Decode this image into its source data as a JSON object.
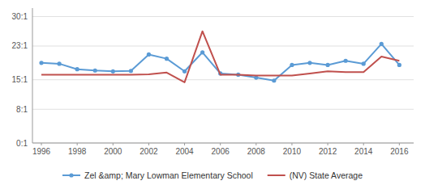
{
  "chart_data": {
    "type": "line",
    "x": [
      1996,
      1997,
      1998,
      1999,
      2000,
      2001,
      2002,
      2003,
      2004,
      2005,
      2006,
      2007,
      2008,
      2009,
      2010,
      2011,
      2012,
      2013,
      2014,
      2015,
      2016
    ],
    "series": [
      {
        "name": "Zel &amp; Mary Lowman Elementary School",
        "color": "#5b9bd5",
        "marker": "circle",
        "line_style": "solid",
        "values": [
          19.0,
          18.8,
          17.5,
          17.2,
          17.0,
          17.1,
          21.0,
          20.0,
          17.0,
          21.5,
          16.5,
          16.2,
          15.5,
          14.8,
          18.5,
          19.0,
          18.5,
          19.5,
          18.8,
          23.5,
          18.5
        ]
      },
      {
        "name": "(NV) State Average",
        "color": "#c0504d",
        "line_style": "solid",
        "values": [
          16.2,
          16.2,
          16.2,
          16.2,
          16.2,
          16.2,
          16.3,
          16.7,
          14.4,
          26.5,
          16.2,
          16.2,
          16.0,
          16.0,
          16.0,
          16.5,
          17.0,
          16.8,
          16.8,
          20.5,
          19.5
        ]
      }
    ],
    "xlim": [
      1995.5,
      2016.8
    ],
    "xticks": [
      1996,
      1998,
      2000,
      2002,
      2004,
      2006,
      2008,
      2010,
      2012,
      2014,
      2016
    ],
    "ylim": [
      0,
      32
    ],
    "yticks": [
      {
        "value": 0,
        "label": "0:1"
      },
      {
        "value": 8,
        "label": "8:1"
      },
      {
        "value": 15,
        "label": "15:1"
      },
      {
        "value": 23,
        "label": "23:1"
      },
      {
        "value": 30,
        "label": "30:1"
      }
    ],
    "grid": true,
    "legend": "bottom"
  }
}
